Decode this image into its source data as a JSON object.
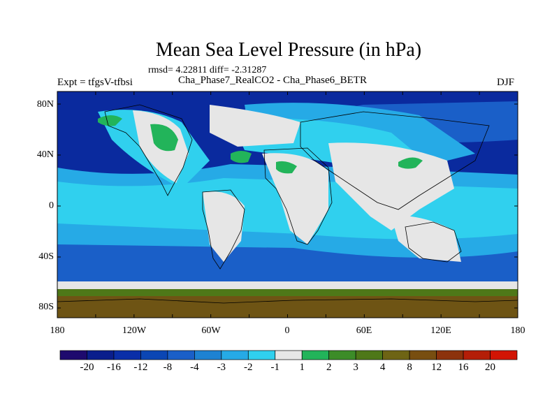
{
  "title": "Mean Sea Level Pressure (in hPa)",
  "stats": "rmsd= 4.22811 diff= -2.31287",
  "experiment": "Expt = tfgsV-tfbsi",
  "runs": "Cha_Phase7_RealCO2 - Cha_Phase6_BETR",
  "season": "DJF",
  "lat_labels": [
    "80N",
    "40N",
    "0",
    "40S",
    "80S"
  ],
  "lon_labels": [
    "180",
    "120W",
    "60W",
    "0",
    "60E",
    "120E",
    "180"
  ],
  "colorbar": {
    "colors": [
      "#1e0a6e",
      "#0a1e8c",
      "#0a2ea8",
      "#0b46b4",
      "#1a5fc8",
      "#1e82d2",
      "#26aae6",
      "#30d0ee",
      "#e6e6e6",
      "#22b45a",
      "#3c8c28",
      "#4e7818",
      "#6e6414",
      "#784e10",
      "#8c320c",
      "#b41e08",
      "#d21404"
    ],
    "labels": [
      "-20",
      "-16",
      "-12",
      "-8",
      "-4",
      "-3",
      "-2",
      "-1",
      "1",
      "2",
      "3",
      "4",
      "8",
      "12",
      "16",
      "20"
    ]
  },
  "colors": {
    "deep_blue": "#0a2a9e",
    "mid_blue": "#1a5fc8",
    "light_blue": "#26aae6",
    "cyan": "#30d0ee",
    "near_zero": "#e6e6e6",
    "green": "#22b45a",
    "olive": "#4e7818",
    "brown": "#6e5414"
  }
}
